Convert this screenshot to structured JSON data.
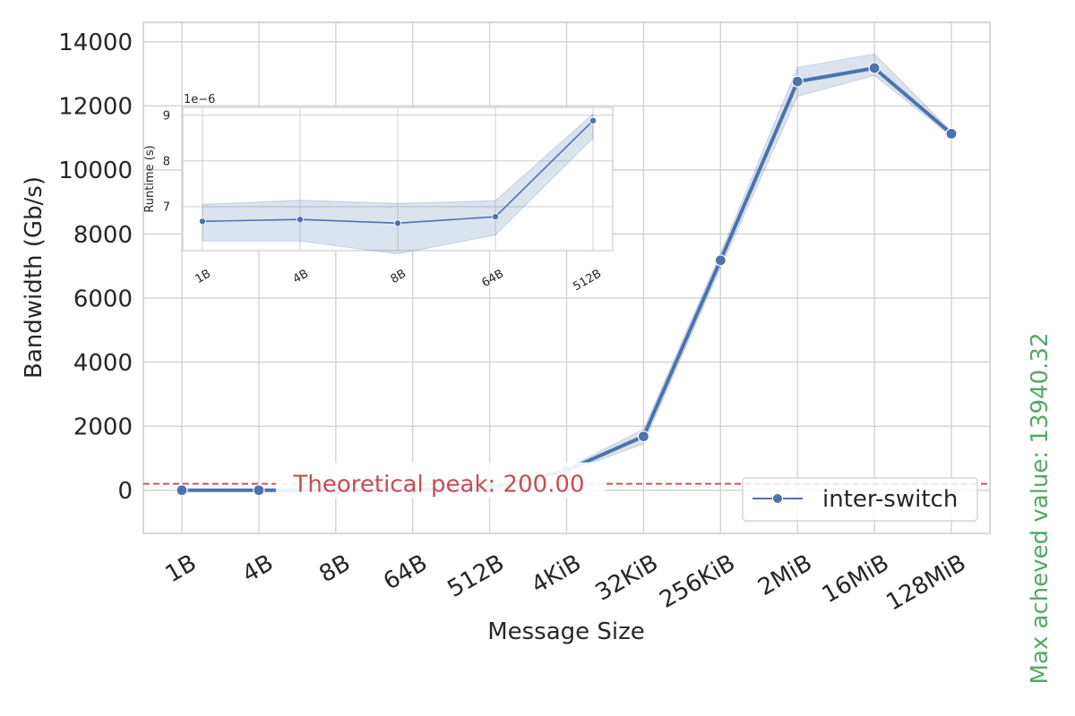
{
  "chart_data": [
    {
      "type": "line",
      "xlabel": "Message Size",
      "ylabel": "Bandwidth (Gb/s)",
      "categories": [
        "1B",
        "4B",
        "8B",
        "64B",
        "512B",
        "4KiB",
        "32KiB",
        "256KiB",
        "2MiB",
        "16MiB",
        "128MiB"
      ],
      "ylim": [
        -650,
        14300
      ],
      "yticks": [
        0,
        2000,
        4000,
        6000,
        8000,
        10000,
        12000,
        14000
      ],
      "grid": true,
      "legend_position": "lower right",
      "series": [
        {
          "name": "inter-switch",
          "color": "#4c72b0",
          "marker": "circle",
          "values": [
            0.15,
            0.6,
            1.2,
            9.5,
            76,
            620,
            1680,
            7180,
            12760,
            13180,
            11130
          ],
          "ci_low": [
            0.1,
            0.5,
            1.0,
            8.5,
            70,
            560,
            1450,
            6950,
            12300,
            12950,
            11050
          ],
          "ci_high": [
            0.2,
            0.7,
            1.4,
            10.5,
            82,
            690,
            1900,
            7400,
            13200,
            13620,
            11200
          ]
        }
      ],
      "annotations": [
        {
          "text": "Theoretical peak: 200.00",
          "y": 200,
          "color": "#c44e52",
          "line_style": "dashed"
        }
      ],
      "side_text": {
        "text": "Max acheved value: 13940.32",
        "color": "#55a868"
      }
    },
    {
      "type": "line",
      "inset": true,
      "ylabel": "Runtime (s)",
      "offset_text": "1e−6",
      "categories": [
        "1B",
        "4B",
        "8B",
        "64B",
        "512B"
      ],
      "ylim": [
        6.04,
        9.17
      ],
      "yticks": [
        7,
        8,
        9
      ],
      "grid": true,
      "series": [
        {
          "color": "#4c72b0",
          "marker": "circle",
          "values": [
            6.68,
            6.72,
            6.64,
            6.78,
            8.88
          ],
          "ci_low": [
            6.25,
            6.25,
            5.97,
            6.38,
            8.5
          ],
          "ci_high": [
            7.05,
            7.14,
            7.07,
            7.13,
            9.03
          ]
        }
      ]
    }
  ]
}
